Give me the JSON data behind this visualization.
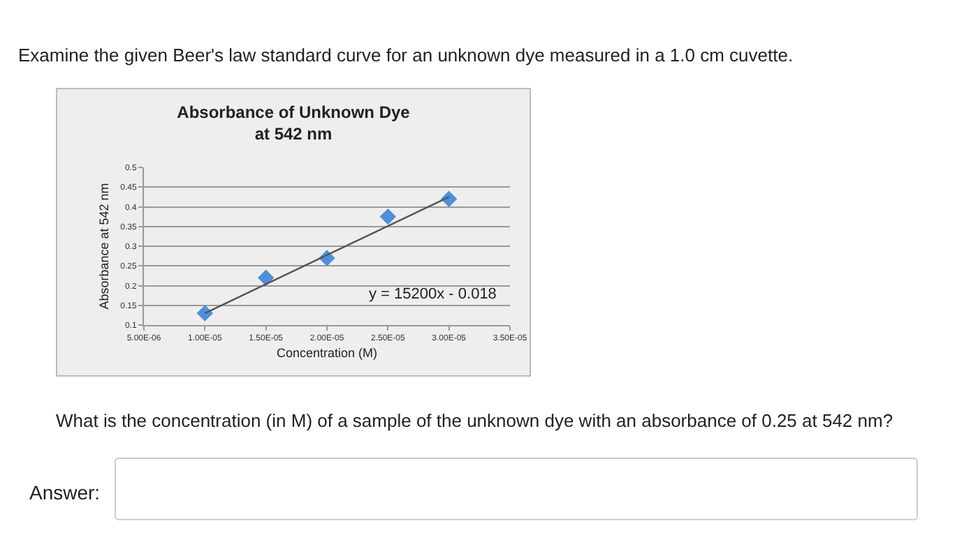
{
  "chart_data": {
    "type": "scatter",
    "title": "Absorbance of Unknown Dye\nat 542 nm",
    "xlabel": "Concentration (M)",
    "ylabel": "Absorbance at 542 nm",
    "annotations": [
      "Examine the given Beer's law standard curve for an unknown dye measured in a 1.0 cm cuvette.",
      "y = 15200x - 0.018",
      "What is the concentration (in M) of a sample of the unknown dye with an absorbance of 0.25 at 542 nm?",
      "Answer:"
    ],
    "series": [
      {
        "color": "#4f8fd6",
        "marker": "diamond",
        "x": [
          1e-05,
          1.5e-05,
          2e-05,
          2.5e-05,
          3e-05
        ],
        "values": [
          0.13,
          0.22,
          0.27,
          0.375,
          0.42
        ]
      },
      {
        "type": "line",
        "color": "#555555",
        "marker": "none",
        "line_style": "solid",
        "x": [
          1e-05,
          3e-05
        ],
        "values": [
          0.13,
          0.425
        ]
      }
    ],
    "xlim": [
      5e-06,
      3.5e-05
    ],
    "xticks": [
      {
        "value": 5e-06,
        "label": "5.00E-06"
      },
      {
        "value": 1e-05,
        "label": "1.00E-05"
      },
      {
        "value": 1.5e-05,
        "label": "1.50E-05"
      },
      {
        "value": 2e-05,
        "label": "2.00E-05"
      },
      {
        "value": 2.5e-05,
        "label": "2.50E-05"
      },
      {
        "value": 3e-05,
        "label": "3.00E-05"
      },
      {
        "value": 3.5e-05,
        "label": "3.50E-05"
      }
    ],
    "ylim": [
      0.1,
      0.5
    ],
    "yticks": [
      0.1,
      0.15,
      0.2,
      0.25,
      0.3,
      0.35,
      0.4,
      0.45,
      0.5
    ],
    "grid": "y"
  }
}
